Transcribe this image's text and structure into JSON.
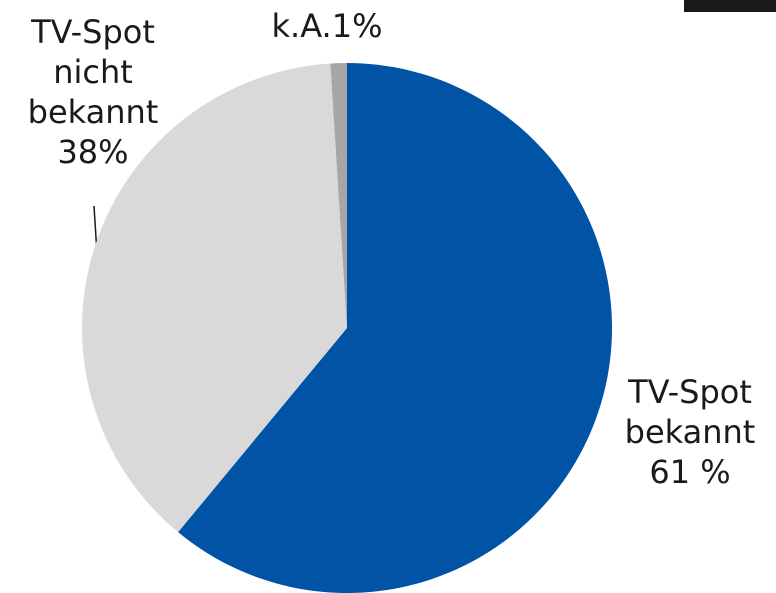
{
  "chart_data": {
    "type": "pie",
    "categories": [
      "TV-Spot bekannt",
      "TV-Spot nicht bekannt",
      "k.A."
    ],
    "values": [
      61,
      38,
      1
    ],
    "value_labels": [
      "61 %",
      "38%",
      "1%"
    ],
    "colors": [
      "#0053a5",
      "#d9d9d9",
      "#a6a6a6"
    ]
  }
}
